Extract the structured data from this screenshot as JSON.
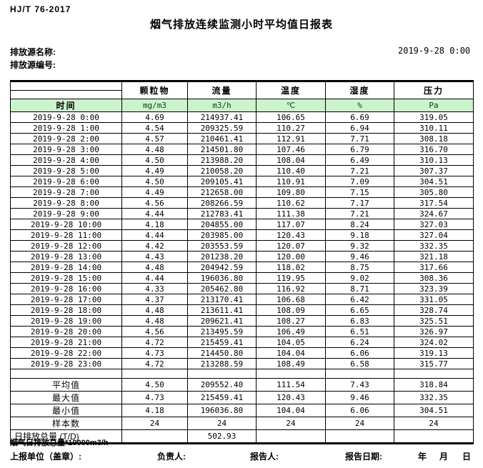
{
  "meta": {
    "standard": "HJ/T 76-2017",
    "title": "烟气排放连续监测小时平均值日报表",
    "source_name_label": "排放源名称:",
    "source_id_label": "排放源编号:",
    "datetime": "2019-9-28 0:00"
  },
  "table": {
    "time_header": "时间",
    "columns": [
      "颗粒物",
      "流量",
      "温度",
      "湿度",
      "压力"
    ],
    "units": [
      "mg/m3",
      "m3/h",
      "℃",
      "%",
      "Pa"
    ],
    "rows": [
      [
        "2019-9-28 0:00",
        "4.69",
        "214937.41",
        "106.65",
        "6.69",
        "319.05"
      ],
      [
        "2019-9-28 1:00",
        "4.54",
        "209325.59",
        "110.27",
        "6.94",
        "310.11"
      ],
      [
        "2019-9-28 2:00",
        "4.57",
        "210461.41",
        "112.91",
        "7.71",
        "308.18"
      ],
      [
        "2019-9-28 3:00",
        "4.48",
        "214501.80",
        "107.46",
        "6.79",
        "316.70"
      ],
      [
        "2019-9-28 4:00",
        "4.50",
        "213988.20",
        "108.04",
        "6.49",
        "310.13"
      ],
      [
        "2019-9-28 5:00",
        "4.49",
        "210058.20",
        "110.40",
        "7.21",
        "307.37"
      ],
      [
        "2019-9-28 6:00",
        "4.50",
        "209105.41",
        "110.91",
        "7.09",
        "304.51"
      ],
      [
        "2019-9-28 7:00",
        "4.49",
        "212658.00",
        "109.80",
        "7.15",
        "305.80"
      ],
      [
        "2019-9-28 8:00",
        "4.56",
        "208266.59",
        "110.62",
        "7.17",
        "317.54"
      ],
      [
        "2019-9-28 9:00",
        "4.44",
        "212783.41",
        "111.38",
        "7.21",
        "324.67"
      ],
      [
        "2019-9-28 10:00",
        "4.18",
        "204855.00",
        "117.07",
        "8.24",
        "327.03"
      ],
      [
        "2019-9-28 11:00",
        "4.44",
        "203985.00",
        "120.43",
        "9.18",
        "327.04"
      ],
      [
        "2019-9-28 12:00",
        "4.42",
        "203553.59",
        "120.07",
        "9.32",
        "332.35"
      ],
      [
        "2019-9-28 13:00",
        "4.43",
        "201238.20",
        "120.00",
        "9.46",
        "321.18"
      ],
      [
        "2019-9-28 14:00",
        "4.48",
        "204942.59",
        "118.02",
        "8.75",
        "317.66"
      ],
      [
        "2019-9-28 15:00",
        "4.44",
        "196036.80",
        "119.95",
        "9.02",
        "308.36"
      ],
      [
        "2019-9-28 16:00",
        "4.33",
        "205462.80",
        "116.92",
        "8.71",
        "323.39"
      ],
      [
        "2019-9-28 17:00",
        "4.37",
        "213170.41",
        "106.68",
        "6.42",
        "331.05"
      ],
      [
        "2019-9-28 18:00",
        "4.48",
        "213611.41",
        "108.09",
        "6.65",
        "328.74"
      ],
      [
        "2019-9-28 19:00",
        "4.48",
        "209621.41",
        "108.27",
        "6.83",
        "325.51"
      ],
      [
        "2019-9-28 20:00",
        "4.56",
        "213495.59",
        "106.49",
        "6.51",
        "326.97"
      ],
      [
        "2019-9-28 21:00",
        "4.72",
        "215459.41",
        "104.05",
        "6.24",
        "324.02"
      ],
      [
        "2019-9-28 22:00",
        "4.73",
        "214450.80",
        "104.04",
        "6.06",
        "319.13"
      ],
      [
        "2019-9-28 23:00",
        "4.72",
        "213288.59",
        "108.49",
        "6.58",
        "315.77"
      ]
    ],
    "summary_rows": [
      [
        "平均值",
        "4.50",
        "209552.40",
        "111.54",
        "7.43",
        "318.84"
      ],
      [
        "最大值",
        "4.73",
        "215459.41",
        "120.43",
        "9.46",
        "332.35"
      ],
      [
        "最小值",
        "4.18",
        "196036.80",
        "104.04",
        "6.06",
        "304.51"
      ],
      [
        "样本数",
        "24",
        "24",
        "24",
        "24",
        "24"
      ],
      [
        "日排放总量 (T/D)",
        "",
        "502.93",
        "",
        "",
        ""
      ]
    ]
  },
  "footer": {
    "total_note": "烟气日排放总量*10000m3/h",
    "report_unit_label": "上报单位（盖章）:",
    "responsible_label": "负责人:",
    "reporter_label": "报告人:",
    "report_date_label": "报告日期:",
    "year_label": "年",
    "month_label": "月",
    "day_label": "日"
  },
  "colors": {
    "unit_row_green": "#ccf3cc",
    "border": "#000000"
  }
}
